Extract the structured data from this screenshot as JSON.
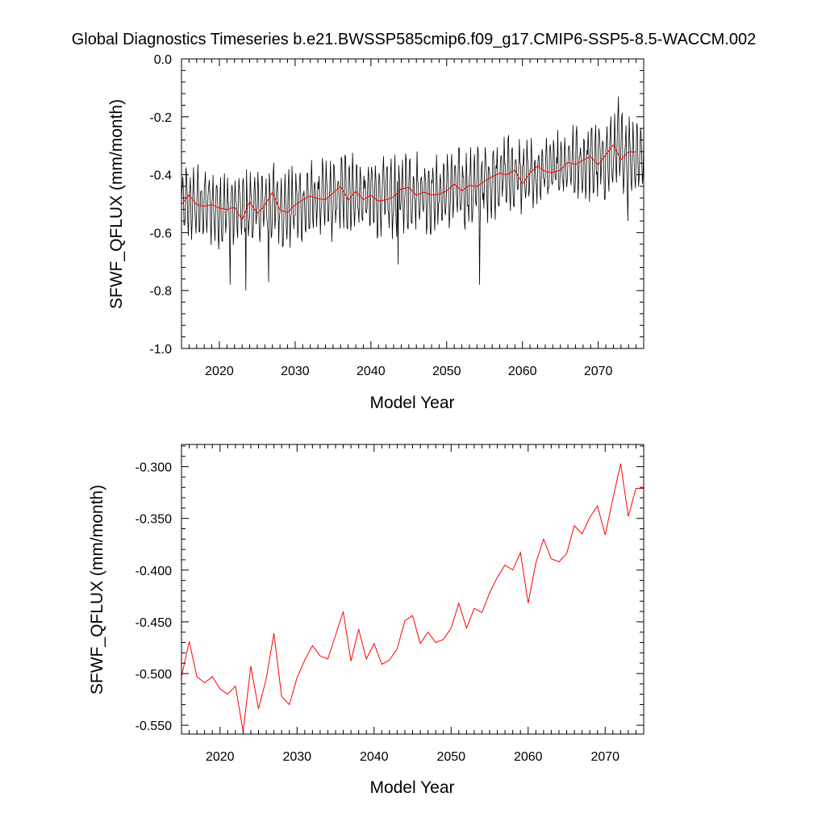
{
  "title": "Global Diagnostics Timeseries b.e21.BWSSP585cmip6.f09_g17.CMIP6-SSP5-8.5-WACCM.002",
  "chart_data": [
    {
      "type": "line",
      "xlabel": "Model Year",
      "ylabel": "SFWF_QFLUX (mm/month)",
      "xlim": [
        2015,
        2076
      ],
      "ylim": [
        -1.0,
        0.0
      ],
      "xticks": [
        "2020",
        "2030",
        "2040",
        "2050",
        "2060",
        "2070"
      ],
      "yticks": [
        "0.0",
        "-0.2",
        "-0.4",
        "-0.6",
        "-0.8",
        "-1.0"
      ],
      "grid": false,
      "series": [
        {
          "role": "monthly",
          "color": "#000000",
          "x_start": 2015.0,
          "x_step": 0.08333,
          "mean_line": [
            [
              2015,
              -0.51
            ],
            [
              2017,
              -0.5
            ],
            [
              2019,
              -0.51
            ],
            [
              2021,
              -0.52
            ],
            [
              2023,
              -0.52
            ],
            [
              2025,
              -0.52
            ],
            [
              2027,
              -0.5
            ],
            [
              2029,
              -0.52
            ],
            [
              2031,
              -0.5
            ],
            [
              2033,
              -0.48
            ],
            [
              2035,
              -0.49
            ],
            [
              2037,
              -0.45
            ],
            [
              2039,
              -0.48
            ],
            [
              2041,
              -0.48
            ],
            [
              2043,
              -0.48
            ],
            [
              2045,
              -0.45
            ],
            [
              2047,
              -0.46
            ],
            [
              2049,
              -0.47
            ],
            [
              2051,
              -0.45
            ],
            [
              2053,
              -0.45
            ],
            [
              2055,
              -0.43
            ],
            [
              2057,
              -0.4
            ],
            [
              2059,
              -0.4
            ],
            [
              2061,
              -0.41
            ],
            [
              2063,
              -0.38
            ],
            [
              2065,
              -0.39
            ],
            [
              2067,
              -0.37
            ],
            [
              2069,
              -0.36
            ],
            [
              2071,
              -0.35
            ],
            [
              2073,
              -0.32
            ],
            [
              2075,
              -0.33
            ],
            [
              2076,
              -0.32
            ]
          ],
          "seasonal_amplitude": 0.1,
          "notable_extremes": [
            [
              2021.4,
              -0.78
            ],
            [
              2023.5,
              -0.8
            ],
            [
              2026.5,
              -0.77
            ],
            [
              2043.6,
              -0.71
            ],
            [
              2054.3,
              -0.78
            ],
            [
              2072.7,
              -0.13
            ],
            [
              2073.9,
              -0.56
            ]
          ]
        },
        {
          "role": "annual",
          "color": "#ff0000",
          "x": [
            2015,
            2016,
            2017,
            2018,
            2019,
            2020,
            2021,
            2022,
            2023,
            2024,
            2025,
            2026,
            2027,
            2028,
            2029,
            2030,
            2031,
            2032,
            2033,
            2034,
            2035,
            2036,
            2037,
            2038,
            2039,
            2040,
            2041,
            2042,
            2043,
            2044,
            2045,
            2046,
            2047,
            2048,
            2049,
            2050,
            2051,
            2052,
            2053,
            2054,
            2055,
            2056,
            2057,
            2058,
            2059,
            2060,
            2061,
            2062,
            2063,
            2064,
            2065,
            2066,
            2067,
            2068,
            2069,
            2070,
            2071,
            2072,
            2073,
            2074,
            2075
          ],
          "values": [
            -0.503,
            -0.469,
            -0.503,
            -0.509,
            -0.503,
            -0.515,
            -0.52,
            -0.512,
            -0.556,
            -0.493,
            -0.534,
            -0.505,
            -0.461,
            -0.522,
            -0.53,
            -0.504,
            -0.487,
            -0.473,
            -0.483,
            -0.486,
            -0.463,
            -0.44,
            -0.488,
            -0.457,
            -0.486,
            -0.471,
            -0.491,
            -0.487,
            -0.476,
            -0.449,
            -0.444,
            -0.471,
            -0.46,
            -0.47,
            -0.467,
            -0.456,
            -0.432,
            -0.456,
            -0.437,
            -0.441,
            -0.422,
            -0.407,
            -0.395,
            -0.4,
            -0.383,
            -0.432,
            -0.393,
            -0.37,
            -0.389,
            -0.392,
            -0.384,
            -0.357,
            -0.365,
            -0.349,
            -0.338,
            -0.366,
            -0.331,
            -0.297,
            -0.348,
            -0.321,
            -0.321
          ]
        }
      ]
    },
    {
      "type": "line",
      "xlabel": "Model Year",
      "ylabel": "SFWF_QFLUX (mm/month)",
      "xlim": [
        2015,
        2075
      ],
      "ylim": [
        -0.5585,
        -0.2785
      ],
      "xticks": [
        "2020",
        "2030",
        "2040",
        "2050",
        "2060",
        "2070"
      ],
      "yticks": [
        "-0.300",
        "-0.350",
        "-0.400",
        "-0.450",
        "-0.500",
        "-0.550"
      ],
      "grid": false,
      "series": [
        {
          "role": "annual",
          "color": "#ff0000",
          "x": [
            2015,
            2016,
            2017,
            2018,
            2019,
            2020,
            2021,
            2022,
            2023,
            2024,
            2025,
            2026,
            2027,
            2028,
            2029,
            2030,
            2031,
            2032,
            2033,
            2034,
            2035,
            2036,
            2037,
            2038,
            2039,
            2040,
            2041,
            2042,
            2043,
            2044,
            2045,
            2046,
            2047,
            2048,
            2049,
            2050,
            2051,
            2052,
            2053,
            2054,
            2055,
            2056,
            2057,
            2058,
            2059,
            2060,
            2061,
            2062,
            2063,
            2064,
            2065,
            2066,
            2067,
            2068,
            2069,
            2070,
            2071,
            2072,
            2073,
            2074,
            2075
          ],
          "values": [
            -0.503,
            -0.469,
            -0.503,
            -0.509,
            -0.503,
            -0.515,
            -0.52,
            -0.512,
            -0.556,
            -0.493,
            -0.534,
            -0.505,
            -0.461,
            -0.522,
            -0.53,
            -0.504,
            -0.487,
            -0.473,
            -0.483,
            -0.486,
            -0.463,
            -0.44,
            -0.488,
            -0.457,
            -0.486,
            -0.471,
            -0.491,
            -0.487,
            -0.476,
            -0.449,
            -0.444,
            -0.471,
            -0.46,
            -0.47,
            -0.467,
            -0.456,
            -0.432,
            -0.456,
            -0.437,
            -0.441,
            -0.422,
            -0.407,
            -0.395,
            -0.4,
            -0.383,
            -0.432,
            -0.393,
            -0.37,
            -0.389,
            -0.392,
            -0.384,
            -0.357,
            -0.365,
            -0.349,
            -0.338,
            -0.366,
            -0.331,
            -0.297,
            -0.348,
            -0.321,
            -0.321
          ]
        }
      ]
    }
  ]
}
